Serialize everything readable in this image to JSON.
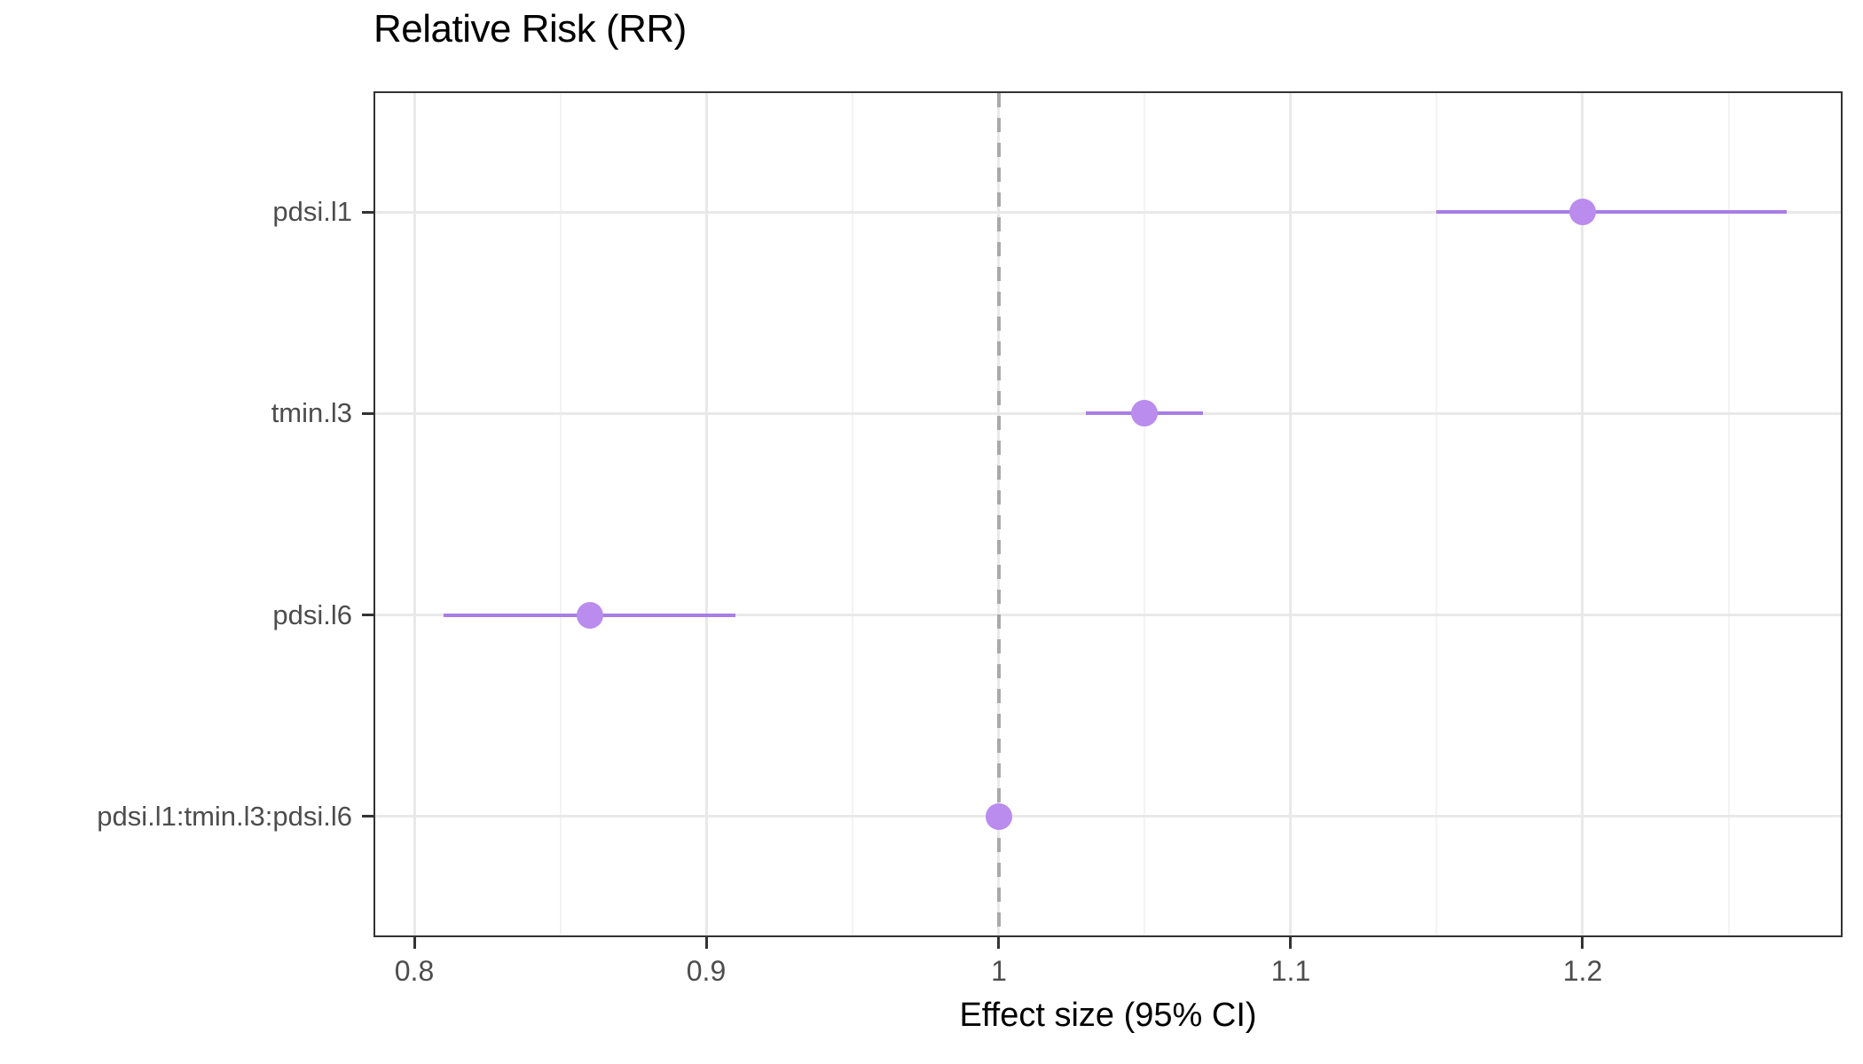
{
  "chart_data": {
    "type": "scatter",
    "variant": "forest-plot-dot-ci",
    "title": "Relative Risk (RR)",
    "xlabel": "Effect size (95% CI)",
    "ylabel": "",
    "categories": [
      "pdsi.l1",
      "tmin.l3",
      "pdsi.l6",
      "pdsi.l1:tmin.l3:pdsi.l6"
    ],
    "series": [
      {
        "name": "Relative Risk (RR)",
        "points": [
          {
            "term": "pdsi.l1",
            "estimate": 1.2,
            "ci_low": 1.15,
            "ci_high": 1.27
          },
          {
            "term": "tmin.l3",
            "estimate": 1.05,
            "ci_low": 1.03,
            "ci_high": 1.07
          },
          {
            "term": "pdsi.l6",
            "estimate": 0.86,
            "ci_low": 0.81,
            "ci_high": 0.91
          },
          {
            "term": "pdsi.l1:tmin.l3:pdsi.l6",
            "estimate": 1.0,
            "ci_low": 0.996,
            "ci_high": 1.004
          }
        ]
      }
    ],
    "x_ticks": [
      {
        "value": 0.8,
        "label": "0.8"
      },
      {
        "value": 0.9,
        "label": "0.9"
      },
      {
        "value": 1.0,
        "label": "1"
      },
      {
        "value": 1.1,
        "label": "1.1"
      },
      {
        "value": 1.2,
        "label": "1.2"
      }
    ],
    "x_minor_ticks": [
      0.85,
      0.95,
      1.05,
      1.15,
      1.25
    ],
    "xlim": [
      0.786,
      1.289
    ],
    "reference_line": {
      "x": 1.0,
      "style": "dashed"
    },
    "grid": true,
    "legend": false
  },
  "colors": {
    "point": "#b98cee",
    "ci_line": "#a87de6",
    "reference_line": "#a9a9a9",
    "grid_major": "#e9e9e9",
    "grid_minor": "#f3f3f3",
    "panel_border": "#333333",
    "tick_mark": "#333333",
    "tick_label": "#4d4d4d",
    "title_text": "#000000",
    "background": "#ffffff"
  }
}
